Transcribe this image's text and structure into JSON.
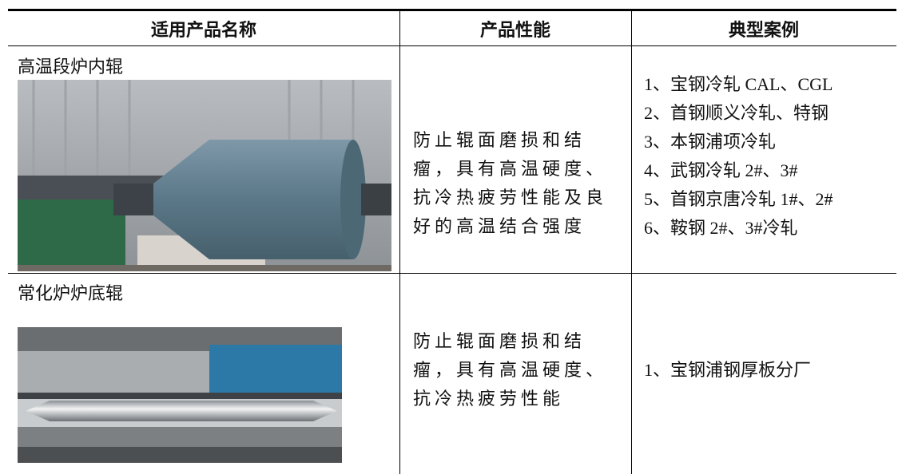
{
  "table": {
    "header": [
      "适用产品名称",
      "产品性能",
      "典型案例"
    ],
    "rows": [
      {
        "name": "高温段炉内辊",
        "performance": [
          "防止辊面磨损和结",
          "瘤，具有高温硬度、",
          "抗冷热疲劳性能及良",
          "好的高温结合强度"
        ],
        "cases": [
          "1、宝钢冷轧 CAL、CGL",
          "2、首钢顺义冷轧、特钢",
          "3、本钢浦项冷轧",
          "4、武钢冷轧 2#、3#",
          "5、首钢京唐冷轧 1#、2#",
          "6、鞍钢 2#、3#冷轧"
        ]
      },
      {
        "name": "常化炉炉底辊",
        "performance": [
          "防止辊面磨损和结",
          "瘤，具有高温硬度、",
          "抗冷热疲劳性能"
        ],
        "cases": [
          "1、宝钢浦钢厚板分厂"
        ]
      }
    ]
  }
}
